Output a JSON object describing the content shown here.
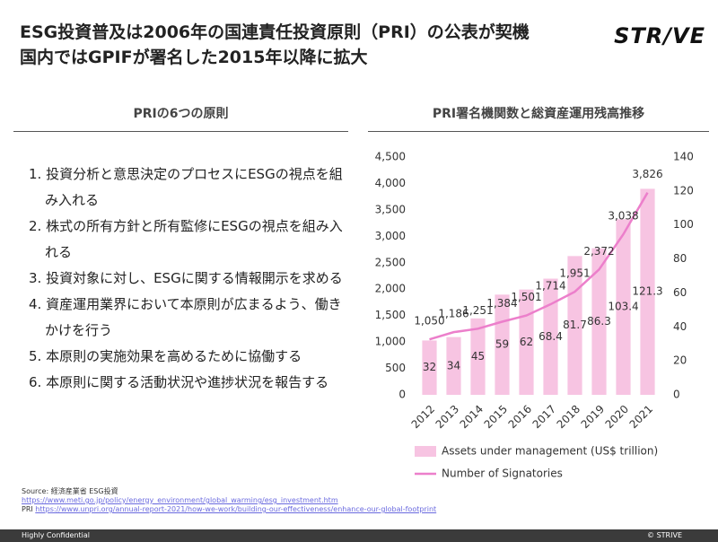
{
  "header": {
    "title_lines": [
      "ESG投資普及は2006年の国連責任投資原則（PRI）の公表が契機",
      "国内ではGPIFが署名した2015年以降に拡大"
    ],
    "logo": "STR/VE"
  },
  "left": {
    "heading": "PRIの6つの原則",
    "items": [
      "1. 投資分析と意思決定のプロセスにESGの視点を組み入れる",
      "2. 株式の所有方針と所有監修にESGの視点を組み入れる",
      "3. 投資対象に対し、ESGに関する情報開示を求める",
      "4. 資産運用業界において本原則が広まるよう、働きかけを行う",
      "5. 本原則の実施効果を高めるために協働する",
      "6. 本原則に関する活動状況や進捗状況を報告する"
    ]
  },
  "right": {
    "heading": "PRI署名機関数と総資産運用残高推移"
  },
  "chart_data": {
    "type": "bar-line",
    "categories": [
      "2012",
      "2013",
      "2014",
      "2015",
      "2016",
      "2017",
      "2018",
      "2019",
      "2020",
      "2021"
    ],
    "series": [
      {
        "name": "Assets under management (US$ trillion)",
        "type": "bar",
        "axis": "y2",
        "color": "#f7c4e2",
        "values": [
          32,
          34,
          45,
          59,
          62,
          68.4,
          81.7,
          86.3,
          103.4,
          121.3
        ]
      },
      {
        "name": "Number of Signatories",
        "type": "line",
        "color": "#ec7fcb",
        "values": [
          1050,
          1186,
          1251,
          1384,
          1501,
          1714,
          1951,
          2372,
          3038,
          3826
        ],
        "value_labels": [
          "1,050",
          "1,186",
          "1,251",
          "1,384",
          "1,501",
          "1,714",
          "1,951",
          "2,372",
          "3,038",
          "3,826"
        ]
      }
    ],
    "ylim": [
      0,
      4500
    ],
    "yticks": [
      0,
      500,
      {
        "value": 1000,
        "label": "1,000"
      },
      {
        "value": 1500,
        "label": "1,500"
      },
      {
        "value": 2000,
        "label": "2,000"
      },
      {
        "value": 2500,
        "label": "2,500"
      },
      {
        "value": 3000,
        "label": "3,000"
      },
      {
        "value": 3500,
        "label": "3,500"
      },
      {
        "value": 4000,
        "label": "4,000"
      },
      {
        "value": 4500,
        "label": "4,500"
      }
    ],
    "y2lim": [
      0,
      140
    ],
    "y2ticks": [
      0,
      20,
      40,
      60,
      80,
      100,
      120,
      140
    ],
    "legend": "bottom"
  },
  "footer": {
    "source": "Source: 経済産業省 ESG投資",
    "link1": "https://www.meti.go.jp/policy/energy_environment/global_warming/esg_investment.htm",
    "pri_label": "PRI",
    "link2": "https://www.unpri.org/annual-report-2021/how-we-work/building-our-effectiveness/enhance-our-global-footprint",
    "confidential": "Highly Confidential",
    "copyright": "© STRIVE"
  }
}
